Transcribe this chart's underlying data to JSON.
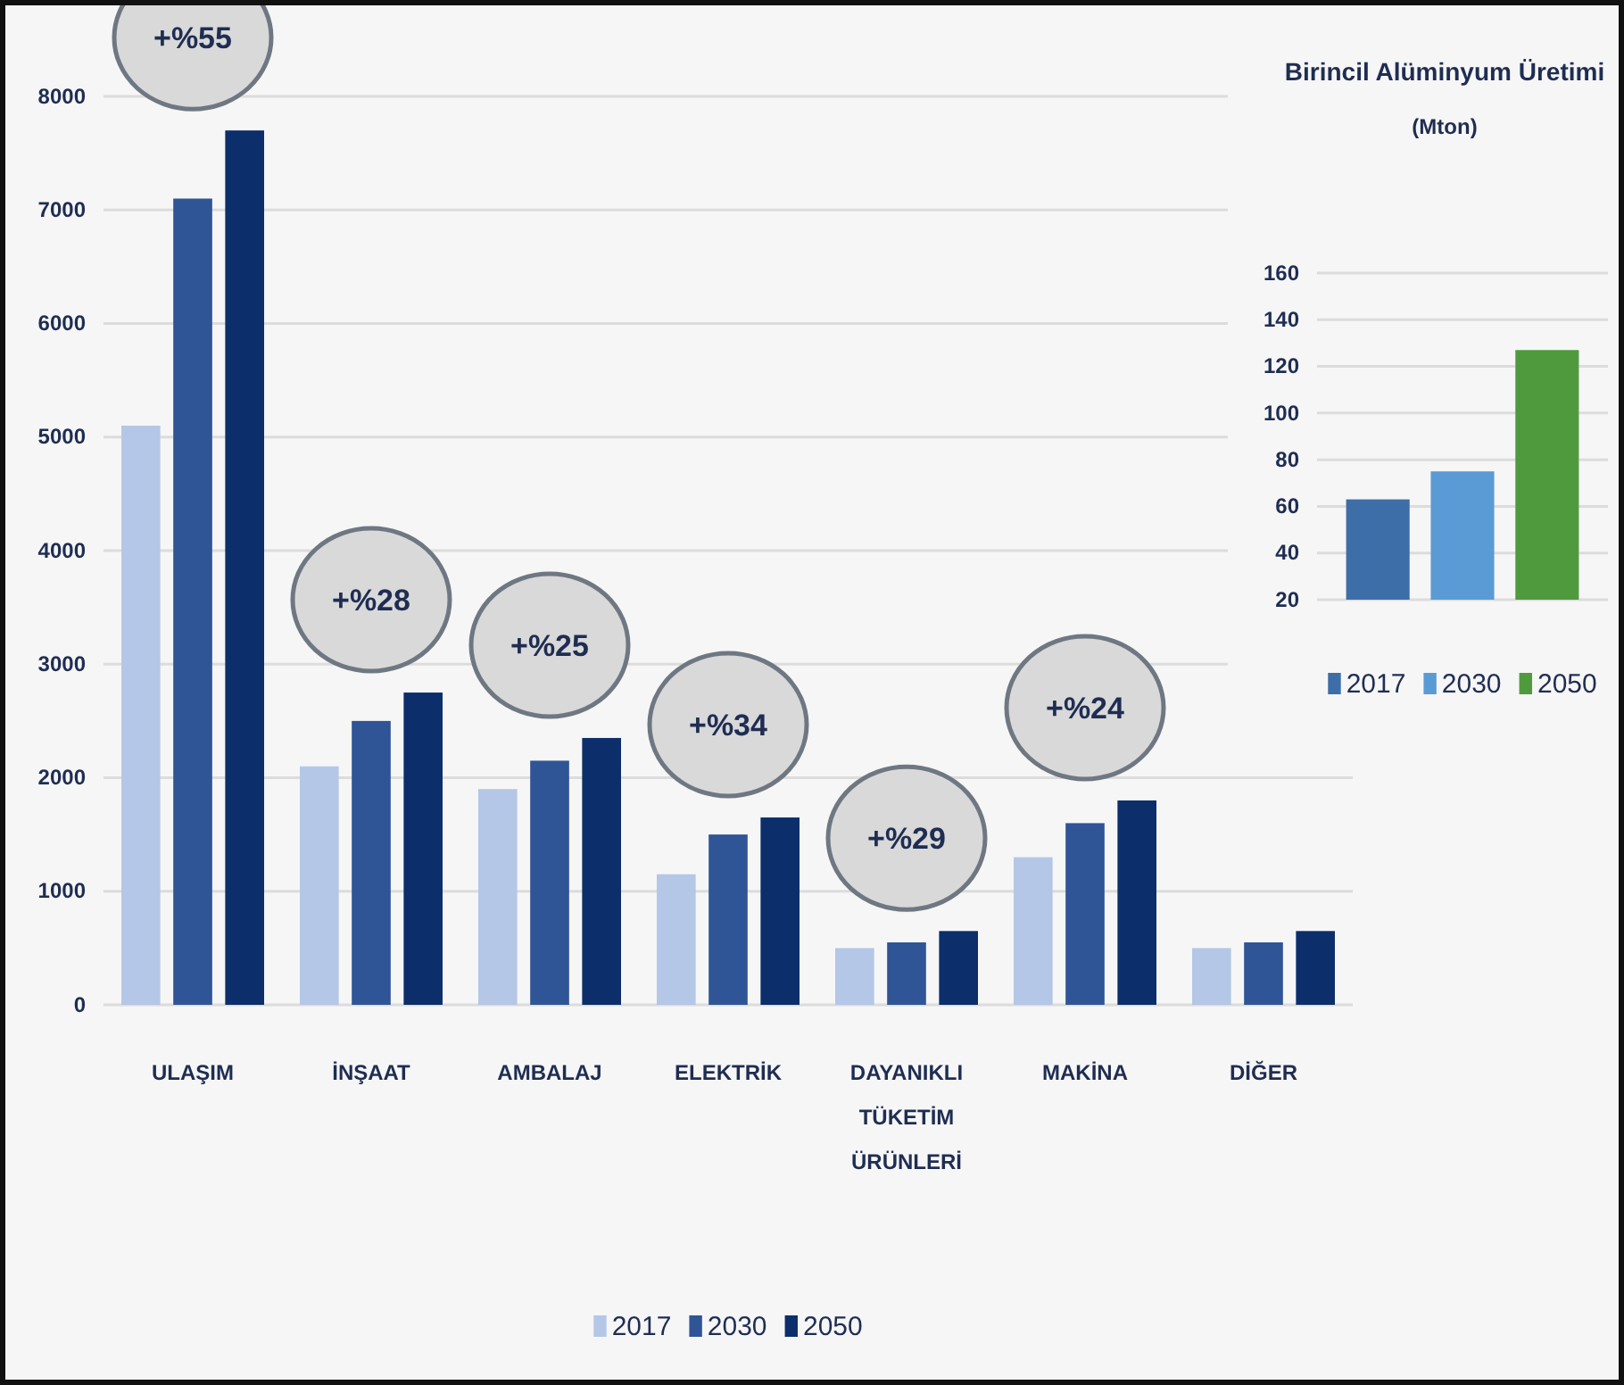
{
  "chart_data": [
    {
      "type": "bar",
      "categories": [
        "ULAŞIM",
        "İNŞAAT",
        "AMBALAJ",
        "ELEKTRİK",
        "DAYANIKLI TÜKETİM ÜRÜNLERİ",
        "MAKİNA",
        "DİĞER"
      ],
      "series": [
        {
          "name": "2017",
          "color": "#b4c7e7",
          "values": [
            5100,
            2100,
            1900,
            1150,
            500,
            1300,
            500
          ]
        },
        {
          "name": "2030",
          "color": "#2f5597",
          "values": [
            7100,
            2500,
            2150,
            1500,
            550,
            1600,
            550
          ]
        },
        {
          "name": "2050",
          "color": "#0c2f6b",
          "values": [
            7700,
            2750,
            2350,
            1650,
            650,
            1800,
            650
          ]
        }
      ],
      "ylim": [
        0,
        8000
      ],
      "yticks": [
        0,
        1000,
        2000,
        3000,
        4000,
        5000,
        6000,
        7000,
        8000
      ],
      "grid": "y",
      "legend": "bottom",
      "annotations": [
        "+%55",
        "+%28",
        "+%25",
        "+%34",
        "+%29",
        "+%24"
      ]
    },
    {
      "type": "bar",
      "title": "Birincil Alüminyum Üretimi",
      "subtitle": "(Mton)",
      "categories": [
        null
      ],
      "series": [
        {
          "name": "2017",
          "color": "#3d6ea8",
          "values": [
            63
          ]
        },
        {
          "name": "2030",
          "color": "#5b9bd5",
          "values": [
            75
          ]
        },
        {
          "name": "2050",
          "color": "#4f9a3c",
          "values": [
            127
          ]
        }
      ],
      "ylim": [
        20,
        160
      ],
      "yticks": [
        20,
        40,
        60,
        80,
        100,
        120,
        140,
        160
      ],
      "grid": "y",
      "legend": "bottom"
    }
  ]
}
